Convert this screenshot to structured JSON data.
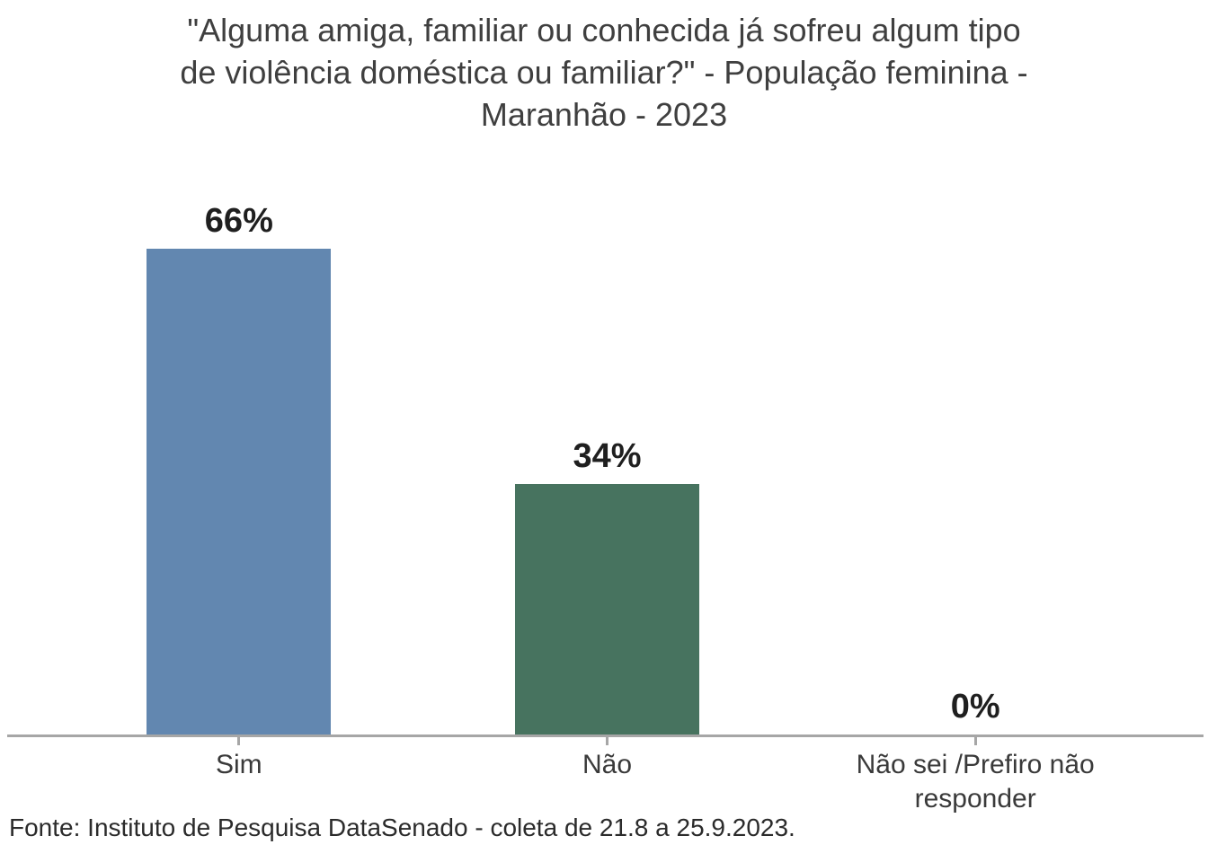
{
  "chart_data": {
    "type": "bar",
    "title": "\"Alguma amiga, familiar ou conhecida já sofreu algum tipo de violência doméstica ou familiar?\" - População feminina - Maranhão - 2023",
    "title_lines": [
      "\"Alguma amiga, familiar ou conhecida já sofreu algum tipo",
      "de violência doméstica ou familiar?\" - População feminina -",
      "Maranhão - 2023"
    ],
    "categories": [
      "Sim",
      "Não",
      "Não sei /Prefiro não responder"
    ],
    "values": [
      66,
      34,
      0
    ],
    "value_labels": [
      "66%",
      "34%",
      "0%"
    ],
    "bar_colors": [
      "#6287b0",
      "#47735f",
      "#47735f"
    ],
    "xlabel": "",
    "ylabel": "",
    "ylim": [
      0,
      66
    ],
    "grid": false,
    "legend": false,
    "axis_color": "#a6a6a6",
    "title_color": "#3f3f3f",
    "value_label_color": "#1f1f1f"
  },
  "source_note": "Fonte: Instituto de Pesquisa DataSenado - coleta de 21.8 a 25.9.2023."
}
